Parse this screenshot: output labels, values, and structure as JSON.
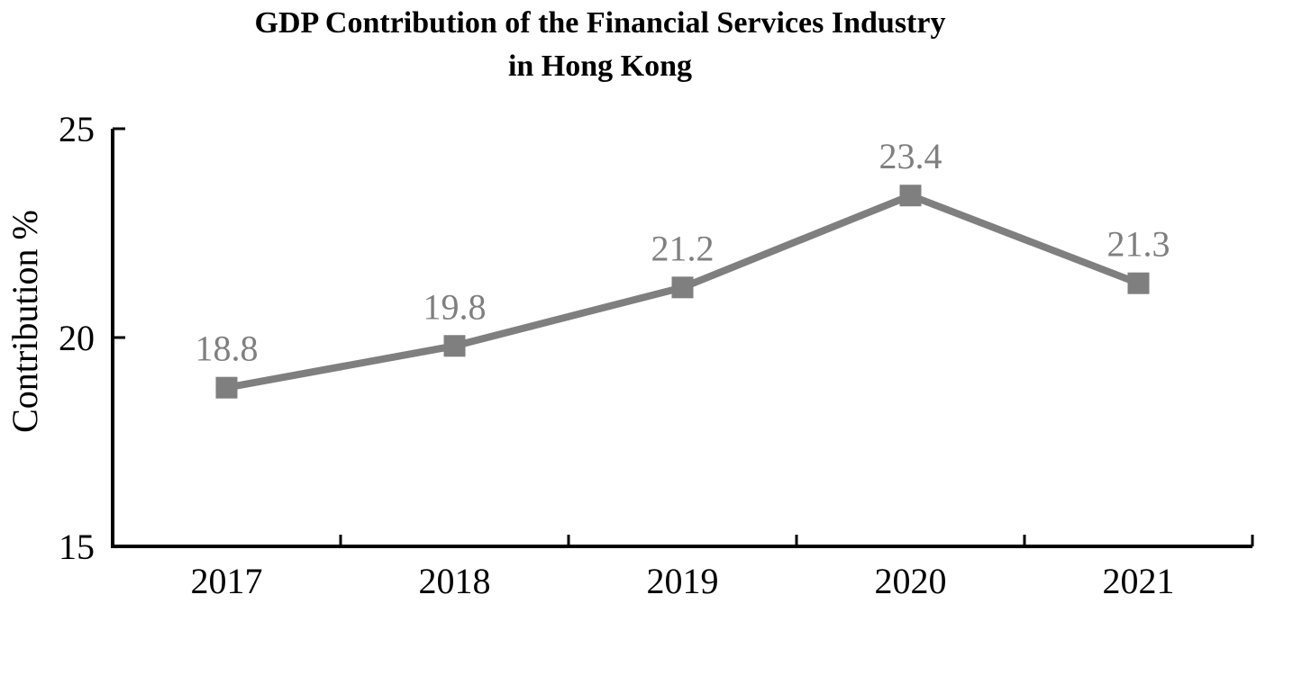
{
  "chart_data": {
    "type": "line",
    "title": "GDP Contribution of the Financial Services Industry in Hong Kong",
    "title_lines": [
      "GDP Contribution of the Financial Services Industry",
      "in Hong Kong"
    ],
    "ylabel": "Contribution %",
    "xlabel": "",
    "categories": [
      "2017",
      "2018",
      "2019",
      "2020",
      "2021"
    ],
    "values": [
      18.8,
      19.8,
      21.2,
      23.4,
      21.3
    ],
    "data_labels": [
      "18.8",
      "19.8",
      "21.2",
      "23.4",
      "21.3"
    ],
    "ylim": [
      15,
      25
    ],
    "yticks": [
      15,
      20,
      25
    ],
    "grid": false,
    "legend": "none",
    "line_color": "#7f7f7f",
    "marker": "square",
    "marker_color": "#7f7f7f",
    "data_label_color": "#7f7f7f",
    "axis_color": "#000000",
    "tick_label_color": "#000000"
  }
}
